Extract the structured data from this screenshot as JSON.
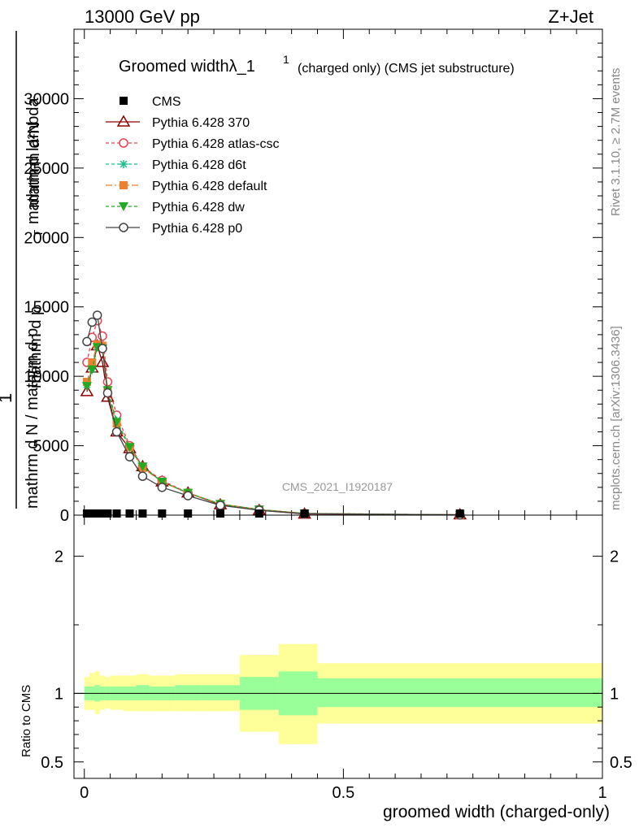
{
  "header": {
    "left": "13000 GeV pp",
    "right": "Z+Jet"
  },
  "side_text": {
    "rivet": "Rivet 3.1.10, ≥ 2.7M events",
    "mcplots": "mcplots.cern.ch [arXiv:1306.3436]"
  },
  "chart_data": [
    {
      "type": "line",
      "title_main": "Groomed widthλ_1",
      "title_sup": "1",
      "title_sub": "(charged only) (CMS jet substructure)",
      "watermark": "CMS_2021_I1920187",
      "ylabel_lines": [
        "1",
        "mathrm d N / mathrm d p",
        "mathrm d p",
        "mathrm d²N",
        "mathrm d lambda",
        "T"
      ],
      "ylim": [
        0,
        35000
      ],
      "xlim": [
        -0.02,
        1.0
      ],
      "yticks": [
        0,
        5000,
        10000,
        15000,
        20000,
        25000,
        30000
      ],
      "ytick_labels": [
        "0",
        "5000",
        "10000",
        "15000",
        "20000",
        "25000",
        "30000"
      ],
      "cms_x": [
        0.005,
        0.015,
        0.025,
        0.035,
        0.045,
        0.0625,
        0.0875,
        0.1125,
        0.15,
        0.2,
        0.2625,
        0.3375,
        0.425,
        0.725
      ],
      "series": [
        {
          "name": "CMS",
          "color": "#000000",
          "marker": "square",
          "dash": "none",
          "x": [
            0.005,
            0.015,
            0.025,
            0.035,
            0.045,
            0.0625,
            0.0875,
            0.1125,
            0.15,
            0.2,
            0.2625,
            0.3375,
            0.425,
            0.725
          ],
          "y": [
            0,
            0,
            0,
            0,
            0,
            0,
            0,
            0,
            0,
            0,
            0,
            0,
            0,
            0
          ]
        },
        {
          "name": "Pythia 6.428 370",
          "color": "#8b0000",
          "marker": "triangle-open",
          "dash": "none",
          "x": [
            0.005,
            0.015,
            0.025,
            0.035,
            0.045,
            0.0625,
            0.0875,
            0.1125,
            0.15,
            0.2,
            0.2625,
            0.3375,
            0.425,
            0.725
          ],
          "y": [
            8900,
            10600,
            12200,
            11000,
            8500,
            6000,
            4800,
            3500,
            2400,
            1600,
            750,
            350,
            80,
            30
          ]
        },
        {
          "name": "Pythia 6.428 atlas-csc",
          "color": "#e8404f",
          "marker": "circle-open",
          "dash": "4,3",
          "x": [
            0.005,
            0.015,
            0.025,
            0.035,
            0.045,
            0.0625,
            0.0875,
            0.1125,
            0.15,
            0.2,
            0.2625,
            0.3375,
            0.425,
            0.725
          ],
          "y": [
            11000,
            12800,
            14000,
            12900,
            9600,
            7200,
            5000,
            3500,
            2500,
            1600,
            800,
            400,
            120,
            20
          ]
        },
        {
          "name": "Pythia 6.428 d6t",
          "color": "#1fbf8f",
          "marker": "star",
          "dash": "4,3",
          "x": [
            0.005,
            0.015,
            0.025,
            0.035,
            0.045,
            0.0625,
            0.0875,
            0.1125,
            0.15,
            0.2,
            0.2625,
            0.3375,
            0.425,
            0.725
          ],
          "y": [
            9400,
            10500,
            12100,
            12100,
            9000,
            6800,
            4900,
            3500,
            2400,
            1600,
            800,
            400,
            120,
            20
          ]
        },
        {
          "name": "Pythia 6.428 default",
          "color": "#f08030",
          "marker": "square",
          "dash": "8,3,2,3",
          "x": [
            0.005,
            0.015,
            0.025,
            0.035,
            0.045,
            0.0625,
            0.0875,
            0.1125,
            0.15,
            0.2,
            0.2625,
            0.3375,
            0.425,
            0.725
          ],
          "y": [
            9600,
            11000,
            12300,
            12200,
            9000,
            6600,
            4900,
            3400,
            2400,
            1600,
            800,
            400,
            120,
            20
          ]
        },
        {
          "name": "Pythia 6.428 dw",
          "color": "#22aa22",
          "marker": "triangle-down",
          "dash": "4,3",
          "x": [
            0.005,
            0.015,
            0.025,
            0.035,
            0.045,
            0.0625,
            0.0875,
            0.1125,
            0.15,
            0.2,
            0.2625,
            0.3375,
            0.425,
            0.725
          ],
          "y": [
            9300,
            10500,
            12100,
            12000,
            9000,
            6700,
            4900,
            3500,
            2400,
            1600,
            800,
            400,
            120,
            20
          ]
        },
        {
          "name": "Pythia 6.428 p0",
          "color": "#444444",
          "marker": "circle-open",
          "dash": "none",
          "x": [
            0.005,
            0.015,
            0.025,
            0.035,
            0.045,
            0.0625,
            0.0875,
            0.1125,
            0.15,
            0.2,
            0.2625,
            0.3375,
            0.425,
            0.725
          ],
          "y": [
            12500,
            13900,
            14400,
            12000,
            8800,
            6000,
            4200,
            2800,
            2000,
            1400,
            700,
            350,
            100,
            20
          ]
        }
      ]
    },
    {
      "type": "area",
      "ylabel": "Ratio to CMS",
      "xlabel": "groomed width (charged-only)",
      "ylim": [
        0.38,
        2.3
      ],
      "xlim": [
        -0.02,
        1.0
      ],
      "yticks": [
        0.5,
        1,
        2
      ],
      "ytick_labels": [
        "0.5",
        "1",
        "2"
      ],
      "xticks": [
        0,
        0.5,
        1
      ],
      "xtick_labels": [
        "0",
        "0.5",
        "1"
      ],
      "band_colors": {
        "outer": "#ffff99",
        "inner": "#99ff99"
      },
      "bins": [
        {
          "x0": 0.0,
          "x1": 0.01,
          "stat_lo": 0.95,
          "stat_hi": 1.05,
          "tot_lo": 0.88,
          "tot_hi": 1.12
        },
        {
          "x0": 0.01,
          "x1": 0.02,
          "stat_lo": 0.95,
          "stat_hi": 1.05,
          "tot_lo": 0.88,
          "tot_hi": 1.15
        },
        {
          "x0": 0.02,
          "x1": 0.03,
          "stat_lo": 0.94,
          "stat_hi": 1.06,
          "tot_lo": 0.85,
          "tot_hi": 1.16
        },
        {
          "x0": 0.03,
          "x1": 0.04,
          "stat_lo": 0.95,
          "stat_hi": 1.05,
          "tot_lo": 0.88,
          "tot_hi": 1.13
        },
        {
          "x0": 0.04,
          "x1": 0.05,
          "stat_lo": 0.95,
          "stat_hi": 1.05,
          "tot_lo": 0.89,
          "tot_hi": 1.12
        },
        {
          "x0": 0.05,
          "x1": 0.075,
          "stat_lo": 0.95,
          "stat_hi": 1.05,
          "tot_lo": 0.88,
          "tot_hi": 1.13
        },
        {
          "x0": 0.075,
          "x1": 0.1,
          "stat_lo": 0.95,
          "stat_hi": 1.05,
          "tot_lo": 0.87,
          "tot_hi": 1.13
        },
        {
          "x0": 0.1,
          "x1": 0.125,
          "stat_lo": 0.95,
          "stat_hi": 1.06,
          "tot_lo": 0.87,
          "tot_hi": 1.14
        },
        {
          "x0": 0.125,
          "x1": 0.175,
          "stat_lo": 0.95,
          "stat_hi": 1.05,
          "tot_lo": 0.87,
          "tot_hi": 1.13
        },
        {
          "x0": 0.175,
          "x1": 0.225,
          "stat_lo": 0.95,
          "stat_hi": 1.06,
          "tot_lo": 0.87,
          "tot_hi": 1.14
        },
        {
          "x0": 0.225,
          "x1": 0.3,
          "stat_lo": 0.95,
          "stat_hi": 1.06,
          "tot_lo": 0.87,
          "tot_hi": 1.14
        },
        {
          "x0": 0.3,
          "x1": 0.375,
          "stat_lo": 0.88,
          "stat_hi": 1.12,
          "tot_lo": 0.72,
          "tot_hi": 1.28
        },
        {
          "x0": 0.375,
          "x1": 0.45,
          "stat_lo": 0.84,
          "stat_hi": 1.16,
          "tot_lo": 0.63,
          "tot_hi": 1.36
        },
        {
          "x0": 0.45,
          "x1": 1.0,
          "stat_lo": 0.9,
          "stat_hi": 1.11,
          "tot_lo": 0.78,
          "tot_hi": 1.22
        }
      ]
    }
  ]
}
